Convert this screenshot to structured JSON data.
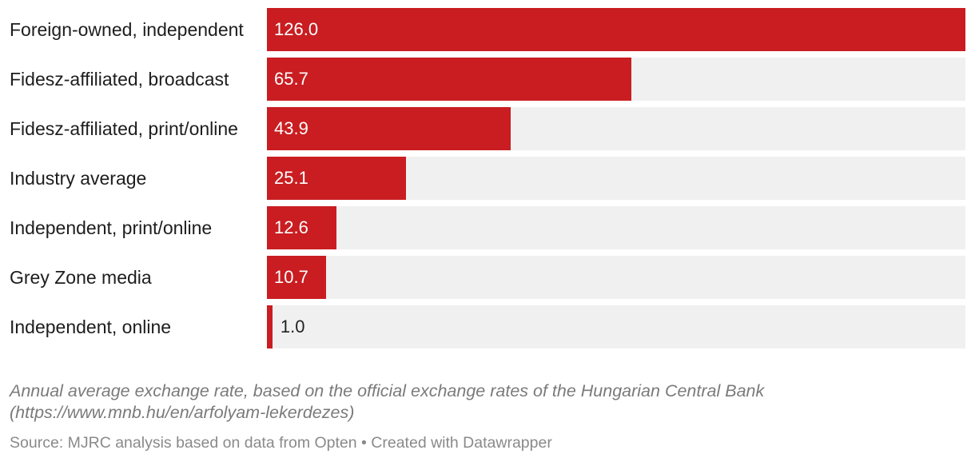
{
  "chart_data": {
    "type": "bar",
    "orientation": "horizontal",
    "categories": [
      "Foreign-owned, independent",
      "Fidesz-affiliated, broadcast",
      "Fidesz-affiliated, print/online",
      "Industry average",
      "Independent, print/online",
      "Grey Zone media",
      "Independent, online"
    ],
    "values": [
      126.0,
      65.7,
      43.9,
      25.1,
      12.6,
      10.7,
      1.0
    ],
    "value_labels": [
      "126.0",
      "65.7",
      "43.9",
      "25.1",
      "12.6",
      "10.7",
      "1.0"
    ],
    "xlim": [
      0,
      126.0
    ],
    "grid": false,
    "legend": "none",
    "colors": {
      "bar": "#c91d21",
      "track": "#f0f0f0",
      "label_on_bar": "#ffffff",
      "label_outside": "#222222"
    }
  },
  "notes": "Annual average exchange rate, based on the official exchange rates of the Hungarian Central Bank (https://www.mnb.hu/en/arfolyam-lekerdezes)",
  "source": "Source: MJRC analysis based on data from Opten • Created with Datawrapper"
}
